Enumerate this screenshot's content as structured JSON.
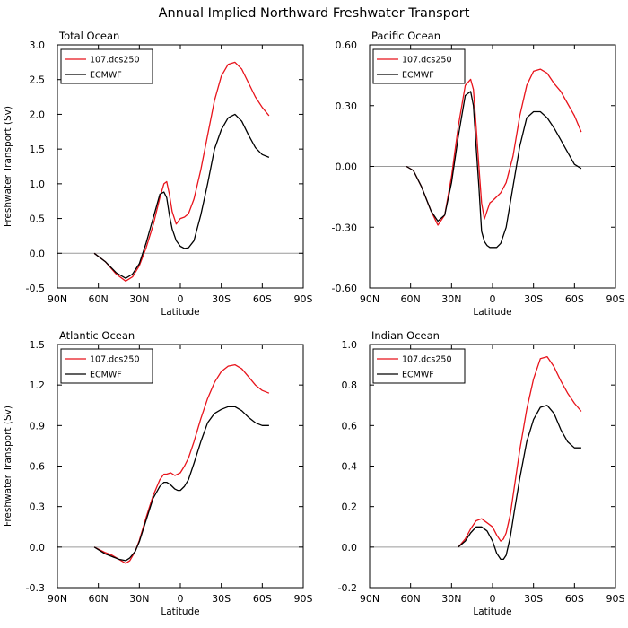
{
  "figure": {
    "title": "Annual Implied Northward Freshwater Transport"
  },
  "colors": {
    "model": "#e8131b",
    "obs": "#000000",
    "zero_line": "#9a9a9a",
    "axes": "#000000",
    "background": "#ffffff"
  },
  "chart_data": [
    {
      "type": "line",
      "title": "Total Ocean",
      "xlabel": "Latitude",
      "ylabel": "Freshwater Transport (Sv)",
      "x_ticks": [
        "90N",
        "60N",
        "30N",
        "0",
        "30S",
        "60S",
        "90S"
      ],
      "y_ticks": [
        "-0.5",
        "0.0",
        "0.5",
        "1.0",
        "1.5",
        "2.0",
        "2.5",
        "3.0"
      ],
      "xlim": [
        90,
        -90
      ],
      "ylim": [
        -0.5,
        3.0
      ],
      "legend": "top-left",
      "series": [
        {
          "name": "107.dcs250",
          "color": "#e8131b",
          "x": [
            63,
            55,
            47,
            40,
            35,
            30,
            25,
            20,
            15,
            12,
            10,
            8,
            6,
            3,
            0,
            -3,
            -6,
            -10,
            -15,
            -20,
            -25,
            -30,
            -35,
            -40,
            -45,
            -50,
            -55,
            -60,
            -65
          ],
          "y": [
            0.0,
            -0.12,
            -0.3,
            -0.4,
            -0.34,
            -0.18,
            0.08,
            0.4,
            0.8,
            1.0,
            1.03,
            0.85,
            0.6,
            0.42,
            0.5,
            0.52,
            0.57,
            0.78,
            1.2,
            1.7,
            2.2,
            2.55,
            2.72,
            2.75,
            2.65,
            2.45,
            2.25,
            2.1,
            1.98
          ]
        },
        {
          "name": "ECMWF",
          "color": "#000000",
          "x": [
            63,
            55,
            47,
            40,
            35,
            30,
            25,
            20,
            15,
            12,
            10,
            8,
            6,
            3,
            0,
            -3,
            -6,
            -10,
            -15,
            -20,
            -25,
            -30,
            -35,
            -40,
            -45,
            -50,
            -55,
            -60,
            -65
          ],
          "y": [
            0.0,
            -0.12,
            -0.28,
            -0.36,
            -0.3,
            -0.15,
            0.15,
            0.5,
            0.85,
            0.88,
            0.8,
            0.55,
            0.35,
            0.18,
            0.1,
            0.07,
            0.08,
            0.18,
            0.55,
            1.0,
            1.5,
            1.78,
            1.95,
            2.0,
            1.9,
            1.7,
            1.52,
            1.42,
            1.38
          ]
        }
      ]
    },
    {
      "type": "line",
      "title": "Pacific Ocean",
      "xlabel": "Latitude",
      "ylabel": "",
      "x_ticks": [
        "90N",
        "60N",
        "30N",
        "0",
        "30S",
        "60S",
        "90S"
      ],
      "y_ticks": [
        "-0.60",
        "-0.30",
        "0.00",
        "0.30",
        "0.60"
      ],
      "xlim": [
        90,
        -90
      ],
      "ylim": [
        -0.6,
        0.6
      ],
      "legend": "top-left",
      "series": [
        {
          "name": "107.dcs250",
          "color": "#e8131b",
          "x": [
            63,
            58,
            52,
            45,
            40,
            35,
            30,
            25,
            20,
            16,
            14,
            12,
            10,
            8,
            6,
            4,
            2,
            0,
            -3,
            -6,
            -10,
            -15,
            -20,
            -25,
            -30,
            -35,
            -40,
            -45,
            -50,
            -55,
            -60,
            -65
          ],
          "y": [
            0.0,
            -0.02,
            -0.1,
            -0.22,
            -0.29,
            -0.24,
            -0.05,
            0.2,
            0.4,
            0.43,
            0.38,
            0.2,
            0.0,
            -0.18,
            -0.26,
            -0.22,
            -0.18,
            -0.17,
            -0.15,
            -0.13,
            -0.08,
            0.05,
            0.25,
            0.4,
            0.47,
            0.48,
            0.46,
            0.41,
            0.37,
            0.31,
            0.25,
            0.17
          ]
        },
        {
          "name": "ECMWF",
          "color": "#000000",
          "x": [
            63,
            58,
            52,
            45,
            40,
            35,
            30,
            25,
            20,
            16,
            14,
            12,
            10,
            8,
            6,
            4,
            2,
            0,
            -3,
            -6,
            -10,
            -15,
            -20,
            -25,
            -30,
            -35,
            -40,
            -45,
            -50,
            -55,
            -60,
            -65
          ],
          "y": [
            0.0,
            -0.02,
            -0.1,
            -0.22,
            -0.27,
            -0.24,
            -0.08,
            0.15,
            0.35,
            0.37,
            0.3,
            0.1,
            -0.1,
            -0.32,
            -0.37,
            -0.39,
            -0.4,
            -0.4,
            -0.4,
            -0.38,
            -0.3,
            -0.1,
            0.1,
            0.24,
            0.27,
            0.27,
            0.24,
            0.19,
            0.13,
            0.07,
            0.01,
            -0.01
          ]
        }
      ]
    },
    {
      "type": "line",
      "title": "Atlantic Ocean",
      "xlabel": "Latitude",
      "ylabel": "Freshwater Transport (Sv)",
      "x_ticks": [
        "90N",
        "60N",
        "30N",
        "0",
        "30S",
        "60S",
        "90S"
      ],
      "y_ticks": [
        "-0.3",
        "0.0",
        "0.3",
        "0.6",
        "0.9",
        "1.2",
        "1.5"
      ],
      "xlim": [
        90,
        -90
      ],
      "ylim": [
        -0.3,
        1.5
      ],
      "legend": "top-left",
      "series": [
        {
          "name": "107.dcs250",
          "color": "#e8131b",
          "x": [
            63,
            55,
            50,
            45,
            40,
            37,
            33,
            30,
            25,
            20,
            15,
            12,
            10,
            7,
            4,
            2,
            0,
            -3,
            -6,
            -10,
            -15,
            -20,
            -25,
            -30,
            -35,
            -40,
            -45,
            -50,
            -55,
            -60,
            -65
          ],
          "y": [
            0.0,
            -0.04,
            -0.06,
            -0.09,
            -0.12,
            -0.1,
            -0.03,
            0.05,
            0.22,
            0.38,
            0.5,
            0.54,
            0.54,
            0.55,
            0.53,
            0.54,
            0.55,
            0.6,
            0.66,
            0.78,
            0.95,
            1.1,
            1.22,
            1.3,
            1.34,
            1.35,
            1.32,
            1.26,
            1.2,
            1.16,
            1.14
          ]
        },
        {
          "name": "ECMWF",
          "color": "#000000",
          "x": [
            63,
            55,
            50,
            45,
            40,
            37,
            33,
            30,
            25,
            20,
            15,
            12,
            10,
            7,
            4,
            2,
            0,
            -3,
            -6,
            -10,
            -15,
            -20,
            -25,
            -30,
            -35,
            -40,
            -45,
            -50,
            -55,
            -60,
            -65
          ],
          "y": [
            0.0,
            -0.05,
            -0.07,
            -0.09,
            -0.1,
            -0.08,
            -0.03,
            0.04,
            0.2,
            0.36,
            0.45,
            0.48,
            0.48,
            0.46,
            0.43,
            0.42,
            0.42,
            0.45,
            0.5,
            0.62,
            0.78,
            0.92,
            0.99,
            1.02,
            1.04,
            1.04,
            1.01,
            0.96,
            0.92,
            0.9,
            0.9
          ]
        }
      ]
    },
    {
      "type": "line",
      "title": "Indian Ocean",
      "xlabel": "Latitude",
      "ylabel": "",
      "x_ticks": [
        "90N",
        "60N",
        "30N",
        "0",
        "30S",
        "60S",
        "90S"
      ],
      "y_ticks": [
        "-0.2",
        "0.0",
        "0.2",
        "0.4",
        "0.6",
        "0.8",
        "1.0"
      ],
      "xlim": [
        90,
        -90
      ],
      "ylim": [
        -0.2,
        1.0
      ],
      "legend": "top-left",
      "series": [
        {
          "name": "107.dcs250",
          "color": "#e8131b",
          "x": [
            25,
            20,
            16,
            12,
            8,
            4,
            0,
            -3,
            -6,
            -8,
            -10,
            -13,
            -16,
            -20,
            -25,
            -30,
            -35,
            -40,
            -45,
            -50,
            -55,
            -60,
            -65
          ],
          "y": [
            0.0,
            0.04,
            0.09,
            0.13,
            0.14,
            0.12,
            0.1,
            0.06,
            0.03,
            0.04,
            0.07,
            0.16,
            0.3,
            0.48,
            0.68,
            0.83,
            0.93,
            0.94,
            0.89,
            0.82,
            0.76,
            0.71,
            0.67
          ]
        },
        {
          "name": "ECMWF",
          "color": "#000000",
          "x": [
            25,
            20,
            16,
            12,
            8,
            4,
            0,
            -3,
            -6,
            -8,
            -10,
            -13,
            -16,
            -20,
            -25,
            -30,
            -35,
            -40,
            -45,
            -50,
            -55,
            -60,
            -65
          ],
          "y": [
            0.0,
            0.03,
            0.07,
            0.1,
            0.1,
            0.08,
            0.03,
            -0.03,
            -0.06,
            -0.06,
            -0.04,
            0.05,
            0.18,
            0.34,
            0.52,
            0.63,
            0.69,
            0.7,
            0.66,
            0.58,
            0.52,
            0.49,
            0.49
          ]
        }
      ]
    }
  ]
}
